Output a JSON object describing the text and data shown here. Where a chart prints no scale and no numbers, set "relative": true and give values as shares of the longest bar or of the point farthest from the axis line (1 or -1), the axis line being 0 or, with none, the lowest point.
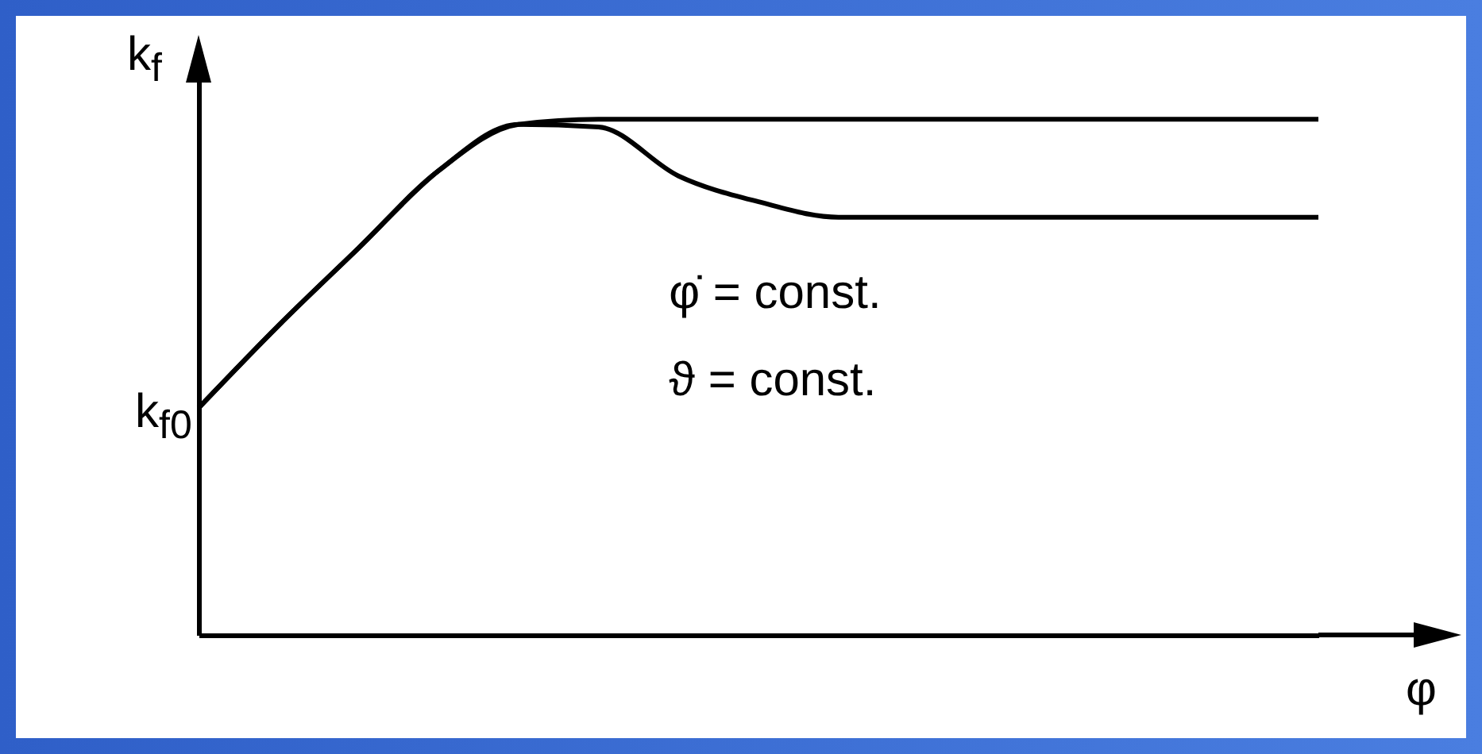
{
  "chart_data": {
    "type": "line",
    "relative": true,
    "xlabel": "φ",
    "ylabel": "k$_{f}$",
    "categories": [
      null,
      null,
      null,
      null,
      null,
      null,
      null,
      null,
      null,
      null,
      null,
      null,
      null,
      null,
      null
    ],
    "series": [
      {
        "color": "#000000",
        "values": [
          0.44,
          0.6,
          0.75,
          0.9,
          0.99,
          1,
          1,
          1,
          1,
          1,
          1,
          1,
          1,
          1,
          1
        ]
      },
      {
        "color": "#000000",
        "values": [
          0.44,
          0.6,
          0.75,
          0.9,
          0.99,
          0.985,
          0.89,
          0.84,
          0.81,
          0.81,
          0.81,
          0.81,
          0.81,
          0.81,
          0.81
        ]
      }
    ],
    "annotations": [
      "k$_{f0}$",
      "φ̇ = const.",
      "ϑ = const."
    ]
  }
}
